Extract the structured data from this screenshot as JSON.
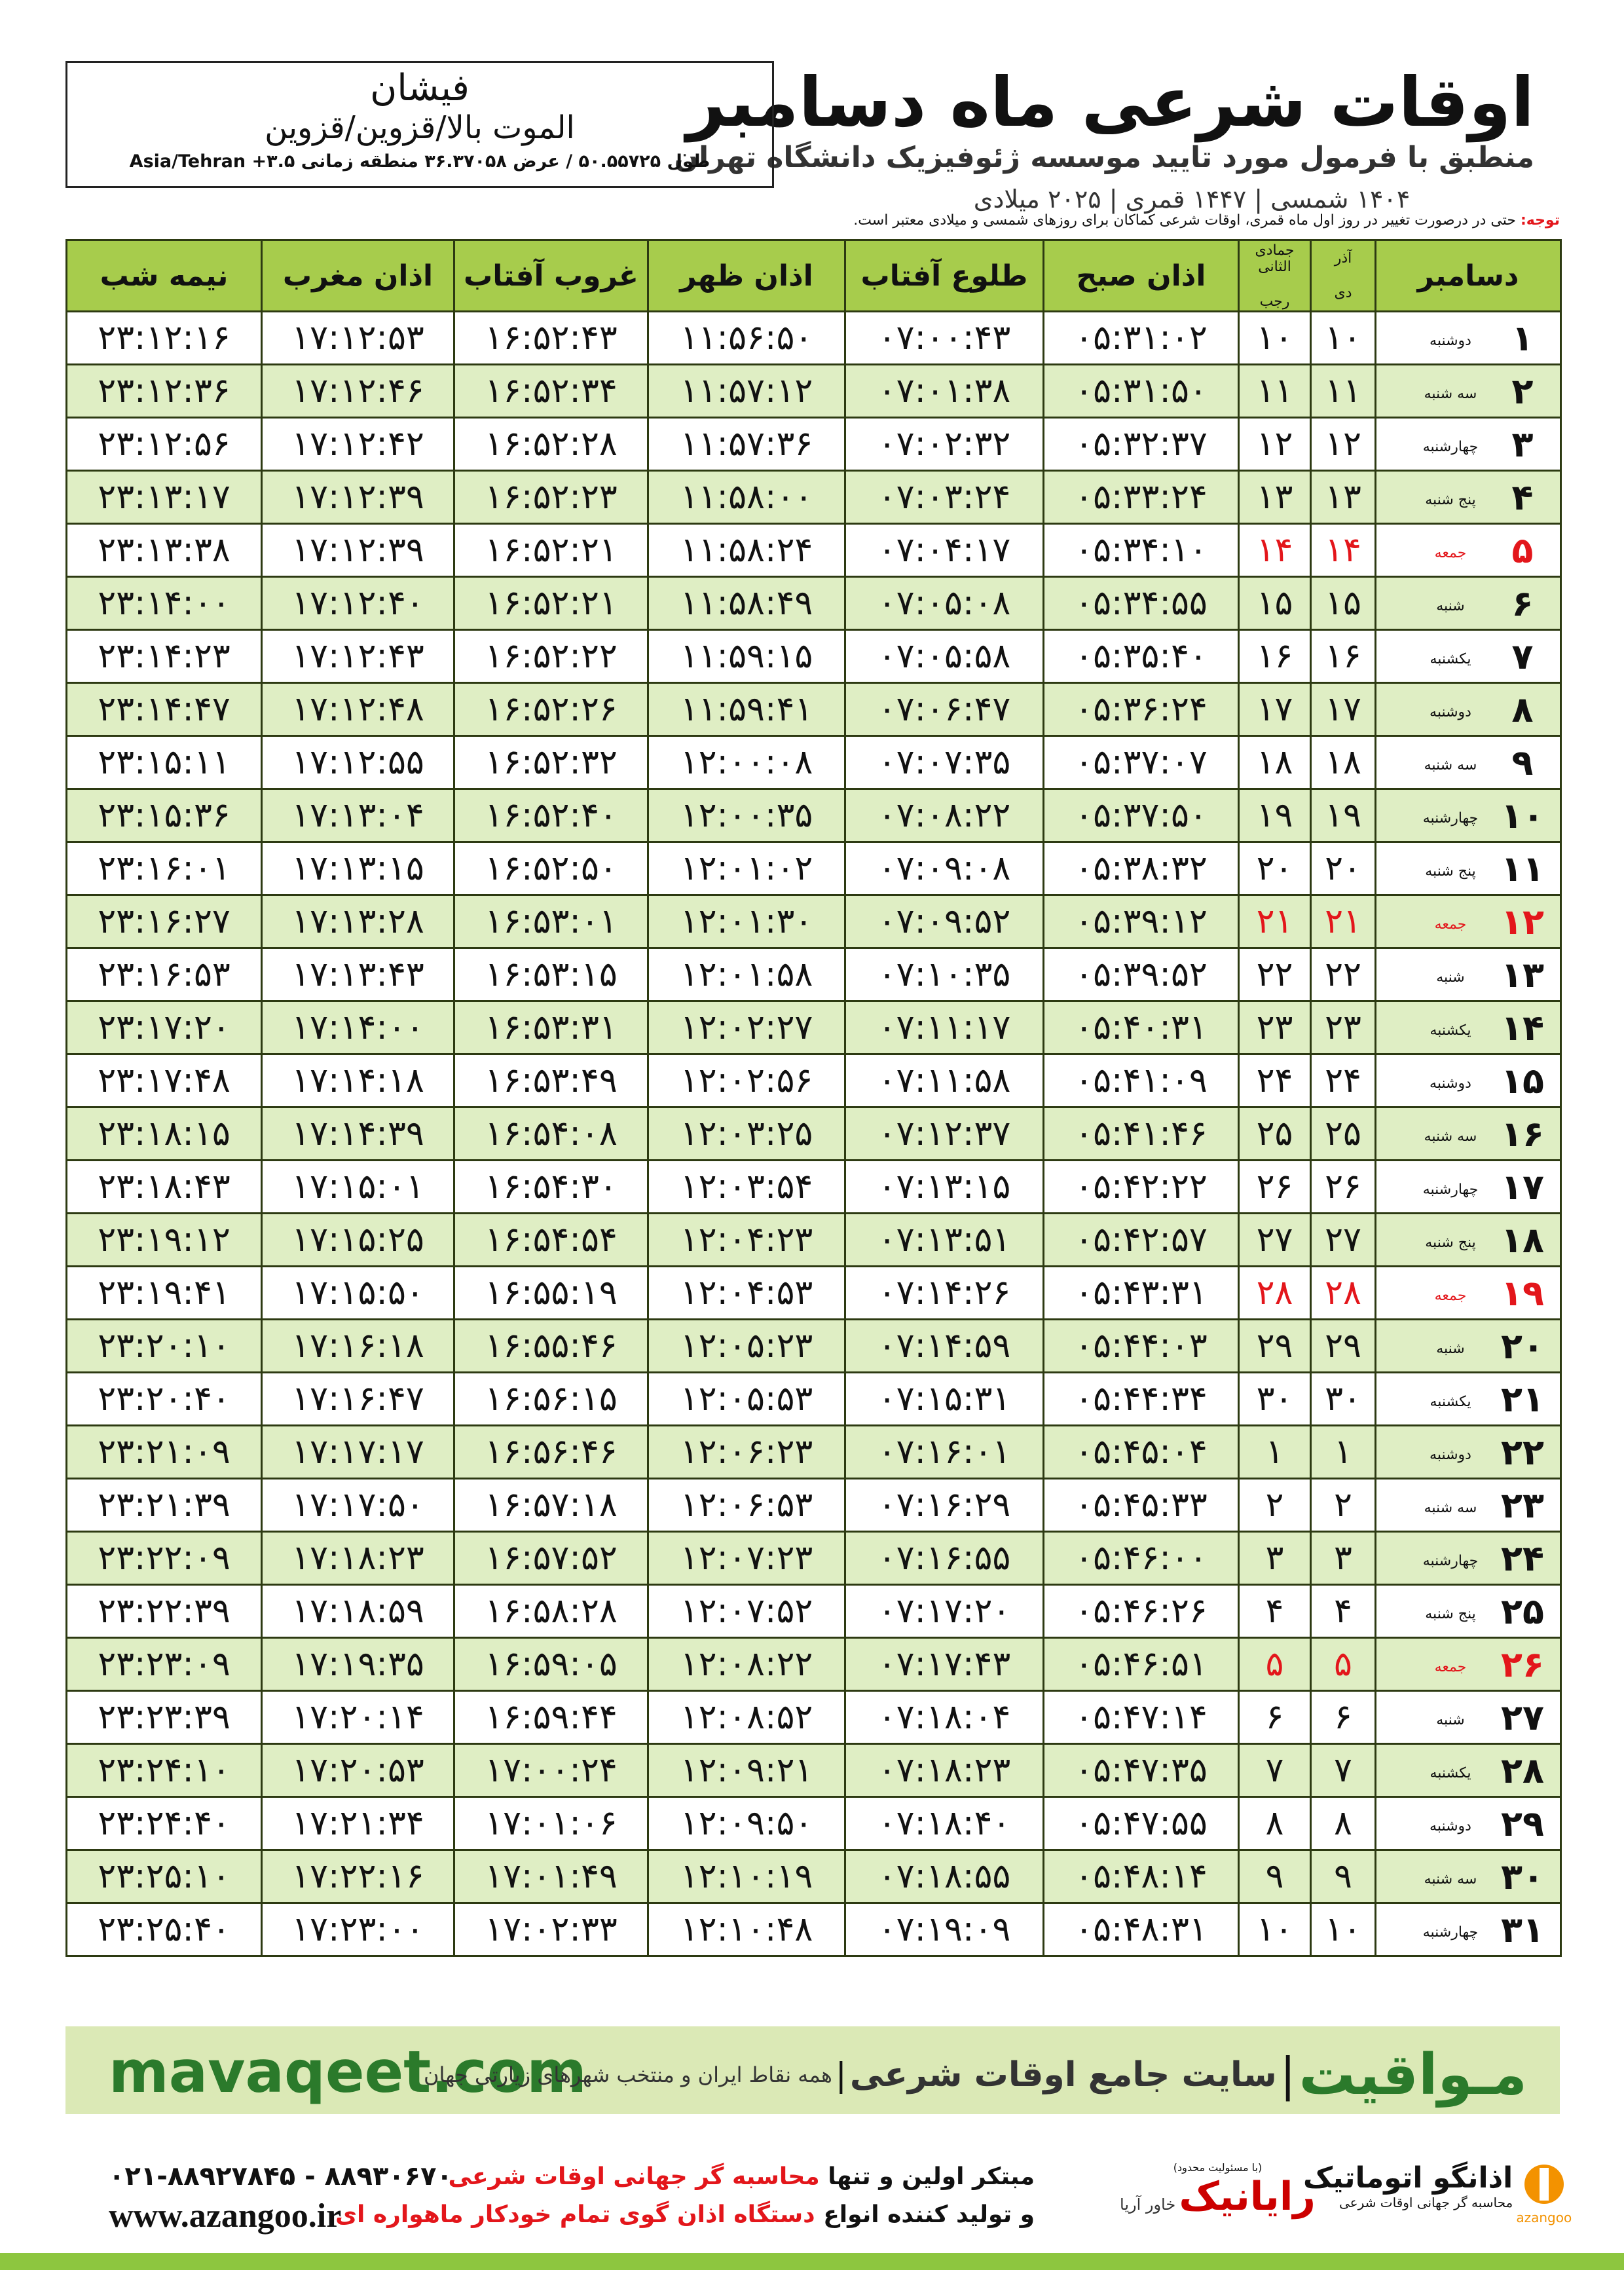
{
  "header": {
    "title": "اوقات شرعی ماه دسامبر",
    "subtitle": "منطبق با فرمول مورد تایید موسسه ژئوفیزیک دانشگاه تهران",
    "dates": "۱۴۰۴ شمسی | ۱۴۴۷ قمری | ۲۰۲۵ میلادی"
  },
  "location": {
    "city": "فیشان",
    "region": "الموت بالا/قزوین/قزوین",
    "coords": "طول ۵۰.۵۵۷۲۵ / عرض ۳۶.۳۷۰۵۸ منطقه زمانی ۳.۵+ Asia/Tehran"
  },
  "note": {
    "label": "توجه:",
    "text": "حتی در درصورت تغییر در روز اول ماه قمری، اوقات شرعی کماکان برای روزهای شمسی و میلادی معتبر است."
  },
  "table": {
    "headers": {
      "month": "دسامبر",
      "solar_top": "آذر",
      "solar_bottom": "دی",
      "lunar_top": "جمادی الثانی",
      "lunar_bottom": "رجب",
      "times": [
        "اذان صبح",
        "طلوع آفتاب",
        "اذان ظهر",
        "غروب آفتاب",
        "اذان مغرب",
        "نیمه شب"
      ]
    },
    "holiday_color": "#e3161b",
    "rows": [
      {
        "cells": [
          "۱",
          "دوشنبه",
          "۱۰",
          "۱۰",
          "۰۵:۳۱:۰۲",
          "۰۷:۰۰:۴۳",
          "۱۱:۵۶:۵۰",
          "۱۶:۵۲:۴۳",
          "۱۷:۱۲:۵۳",
          "۲۳:۱۲:۱۶"
        ]
      },
      {
        "cells": [
          "۲",
          "سه شنبه",
          "۱۱",
          "۱۱",
          "۰۵:۳۱:۵۰",
          "۰۷:۰۱:۳۸",
          "۱۱:۵۷:۱۲",
          "۱۶:۵۲:۳۴",
          "۱۷:۱۲:۴۶",
          "۲۳:۱۲:۳۶"
        ]
      },
      {
        "cells": [
          "۳",
          "چهارشنبه",
          "۱۲",
          "۱۲",
          "۰۵:۳۲:۳۷",
          "۰۷:۰۲:۳۲",
          "۱۱:۵۷:۳۶",
          "۱۶:۵۲:۲۸",
          "۱۷:۱۲:۴۲",
          "۲۳:۱۲:۵۶"
        ]
      },
      {
        "cells": [
          "۴",
          "پنج شنبه",
          "۱۳",
          "۱۳",
          "۰۵:۳۳:۲۴",
          "۰۷:۰۳:۲۴",
          "۱۱:۵۸:۰۰",
          "۱۶:۵۲:۲۳",
          "۱۷:۱۲:۳۹",
          "۲۳:۱۳:۱۷"
        ]
      },
      {
        "cells": [
          "۵",
          "جمعه",
          "۱۴",
          "۱۴",
          "۰۵:۳۴:۱۰",
          "۰۷:۰۴:۱۷",
          "۱۱:۵۸:۲۴",
          "۱۶:۵۲:۲۱",
          "۱۷:۱۲:۳۹",
          "۲۳:۱۳:۳۸"
        ],
        "holiday": true
      },
      {
        "cells": [
          "۶",
          "شنبه",
          "۱۵",
          "۱۵",
          "۰۵:۳۴:۵۵",
          "۰۷:۰۵:۰۸",
          "۱۱:۵۸:۴۹",
          "۱۶:۵۲:۲۱",
          "۱۷:۱۲:۴۰",
          "۲۳:۱۴:۰۰"
        ]
      },
      {
        "cells": [
          "۷",
          "یکشنبه",
          "۱۶",
          "۱۶",
          "۰۵:۳۵:۴۰",
          "۰۷:۰۵:۵۸",
          "۱۱:۵۹:۱۵",
          "۱۶:۵۲:۲۲",
          "۱۷:۱۲:۴۳",
          "۲۳:۱۴:۲۳"
        ]
      },
      {
        "cells": [
          "۸",
          "دوشنبه",
          "۱۷",
          "۱۷",
          "۰۵:۳۶:۲۴",
          "۰۷:۰۶:۴۷",
          "۱۱:۵۹:۴۱",
          "۱۶:۵۲:۲۶",
          "۱۷:۱۲:۴۸",
          "۲۳:۱۴:۴۷"
        ]
      },
      {
        "cells": [
          "۹",
          "سه شنبه",
          "۱۸",
          "۱۸",
          "۰۵:۳۷:۰۷",
          "۰۷:۰۷:۳۵",
          "۱۲:۰۰:۰۸",
          "۱۶:۵۲:۳۲",
          "۱۷:۱۲:۵۵",
          "۲۳:۱۵:۱۱"
        ]
      },
      {
        "cells": [
          "۱۰",
          "چهارشنبه",
          "۱۹",
          "۱۹",
          "۰۵:۳۷:۵۰",
          "۰۷:۰۸:۲۲",
          "۱۲:۰۰:۳۵",
          "۱۶:۵۲:۴۰",
          "۱۷:۱۳:۰۴",
          "۲۳:۱۵:۳۶"
        ]
      },
      {
        "cells": [
          "۱۱",
          "پنج شنبه",
          "۲۰",
          "۲۰",
          "۰۵:۳۸:۳۲",
          "۰۷:۰۹:۰۸",
          "۱۲:۰۱:۰۲",
          "۱۶:۵۲:۵۰",
          "۱۷:۱۳:۱۵",
          "۲۳:۱۶:۰۱"
        ]
      },
      {
        "cells": [
          "۱۲",
          "جمعه",
          "۲۱",
          "۲۱",
          "۰۵:۳۹:۱۲",
          "۰۷:۰۹:۵۲",
          "۱۲:۰۱:۳۰",
          "۱۶:۵۳:۰۱",
          "۱۷:۱۳:۲۸",
          "۲۳:۱۶:۲۷"
        ],
        "holiday": true
      },
      {
        "cells": [
          "۱۳",
          "شنبه",
          "۲۲",
          "۲۲",
          "۰۵:۳۹:۵۲",
          "۰۷:۱۰:۳۵",
          "۱۲:۰۱:۵۸",
          "۱۶:۵۳:۱۵",
          "۱۷:۱۳:۴۳",
          "۲۳:۱۶:۵۳"
        ]
      },
      {
        "cells": [
          "۱۴",
          "یکشنبه",
          "۲۳",
          "۲۳",
          "۰۵:۴۰:۳۱",
          "۰۷:۱۱:۱۷",
          "۱۲:۰۲:۲۷",
          "۱۶:۵۳:۳۱",
          "۱۷:۱۴:۰۰",
          "۲۳:۱۷:۲۰"
        ]
      },
      {
        "cells": [
          "۱۵",
          "دوشنبه",
          "۲۴",
          "۲۴",
          "۰۵:۴۱:۰۹",
          "۰۷:۱۱:۵۸",
          "۱۲:۰۲:۵۶",
          "۱۶:۵۳:۴۹",
          "۱۷:۱۴:۱۸",
          "۲۳:۱۷:۴۸"
        ]
      },
      {
        "cells": [
          "۱۶",
          "سه شنبه",
          "۲۵",
          "۲۵",
          "۰۵:۴۱:۴۶",
          "۰۷:۱۲:۳۷",
          "۱۲:۰۳:۲۵",
          "۱۶:۵۴:۰۸",
          "۱۷:۱۴:۳۹",
          "۲۳:۱۸:۱۵"
        ]
      },
      {
        "cells": [
          "۱۷",
          "چهارشنبه",
          "۲۶",
          "۲۶",
          "۰۵:۴۲:۲۲",
          "۰۷:۱۳:۱۵",
          "۱۲:۰۳:۵۴",
          "۱۶:۵۴:۳۰",
          "۱۷:۱۵:۰۱",
          "۲۳:۱۸:۴۳"
        ]
      },
      {
        "cells": [
          "۱۸",
          "پنج شنبه",
          "۲۷",
          "۲۷",
          "۰۵:۴۲:۵۷",
          "۰۷:۱۳:۵۱",
          "۱۲:۰۴:۲۳",
          "۱۶:۵۴:۵۴",
          "۱۷:۱۵:۲۵",
          "۲۳:۱۹:۱۲"
        ]
      },
      {
        "cells": [
          "۱۹",
          "جمعه",
          "۲۸",
          "۲۸",
          "۰۵:۴۳:۳۱",
          "۰۷:۱۴:۲۶",
          "۱۲:۰۴:۵۳",
          "۱۶:۵۵:۱۹",
          "۱۷:۱۵:۵۰",
          "۲۳:۱۹:۴۱"
        ],
        "holiday": true
      },
      {
        "cells": [
          "۲۰",
          "شنبه",
          "۲۹",
          "۲۹",
          "۰۵:۴۴:۰۳",
          "۰۷:۱۴:۵۹",
          "۱۲:۰۵:۲۳",
          "۱۶:۵۵:۴۶",
          "۱۷:۱۶:۱۸",
          "۲۳:۲۰:۱۰"
        ]
      },
      {
        "cells": [
          "۲۱",
          "یکشنبه",
          "۳۰",
          "۳۰",
          "۰۵:۴۴:۳۴",
          "۰۷:۱۵:۳۱",
          "۱۲:۰۵:۵۳",
          "۱۶:۵۶:۱۵",
          "۱۷:۱۶:۴۷",
          "۲۳:۲۰:۴۰"
        ]
      },
      {
        "cells": [
          "۲۲",
          "دوشنبه",
          "۱",
          "۱",
          "۰۵:۴۵:۰۴",
          "۰۷:۱۶:۰۱",
          "۱۲:۰۶:۲۳",
          "۱۶:۵۶:۴۶",
          "۱۷:۱۷:۱۷",
          "۲۳:۲۱:۰۹"
        ]
      },
      {
        "cells": [
          "۲۳",
          "سه شنبه",
          "۲",
          "۲",
          "۰۵:۴۵:۳۳",
          "۰۷:۱۶:۲۹",
          "۱۲:۰۶:۵۳",
          "۱۶:۵۷:۱۸",
          "۱۷:۱۷:۵۰",
          "۲۳:۲۱:۳۹"
        ]
      },
      {
        "cells": [
          "۲۴",
          "چهارشنبه",
          "۳",
          "۳",
          "۰۵:۴۶:۰۰",
          "۰۷:۱۶:۵۵",
          "۱۲:۰۷:۲۳",
          "۱۶:۵۷:۵۲",
          "۱۷:۱۸:۲۳",
          "۲۳:۲۲:۰۹"
        ]
      },
      {
        "cells": [
          "۲۵",
          "پنج شنبه",
          "۴",
          "۴",
          "۰۵:۴۶:۲۶",
          "۰۷:۱۷:۲۰",
          "۱۲:۰۷:۵۲",
          "۱۶:۵۸:۲۸",
          "۱۷:۱۸:۵۹",
          "۲۳:۲۲:۳۹"
        ]
      },
      {
        "cells": [
          "۲۶",
          "جمعه",
          "۵",
          "۵",
          "۰۵:۴۶:۵۱",
          "۰۷:۱۷:۴۳",
          "۱۲:۰۸:۲۲",
          "۱۶:۵۹:۰۵",
          "۱۷:۱۹:۳۵",
          "۲۳:۲۳:۰۹"
        ],
        "holiday": true
      },
      {
        "cells": [
          "۲۷",
          "شنبه",
          "۶",
          "۶",
          "۰۵:۴۷:۱۴",
          "۰۷:۱۸:۰۴",
          "۱۲:۰۸:۵۲",
          "۱۶:۵۹:۴۴",
          "۱۷:۲۰:۱۴",
          "۲۳:۲۳:۳۹"
        ]
      },
      {
        "cells": [
          "۲۸",
          "یکشنبه",
          "۷",
          "۷",
          "۰۵:۴۷:۳۵",
          "۰۷:۱۸:۲۳",
          "۱۲:۰۹:۲۱",
          "۱۷:۰۰:۲۴",
          "۱۷:۲۰:۵۳",
          "۲۳:۲۴:۱۰"
        ]
      },
      {
        "cells": [
          "۲۹",
          "دوشنبه",
          "۸",
          "۸",
          "۰۵:۴۷:۵۵",
          "۰۷:۱۸:۴۰",
          "۱۲:۰۹:۵۰",
          "۱۷:۰۱:۰۶",
          "۱۷:۲۱:۳۴",
          "۲۳:۲۴:۴۰"
        ]
      },
      {
        "cells": [
          "۳۰",
          "سه شنبه",
          "۹",
          "۹",
          "۰۵:۴۸:۱۴",
          "۰۷:۱۸:۵۵",
          "۱۲:۱۰:۱۹",
          "۱۷:۰۱:۴۹",
          "۱۷:۲۲:۱۶",
          "۲۳:۲۵:۱۰"
        ]
      },
      {
        "cells": [
          "۳۱",
          "چهارشنبه",
          "۱۰",
          "۱۰",
          "۰۵:۴۸:۳۱",
          "۰۷:۱۹:۰۹",
          "۱۲:۱۰:۴۸",
          "۱۷:۰۲:۳۳",
          "۱۷:۲۳:۰۰",
          "۲۳:۲۵:۴۰"
        ]
      }
    ]
  },
  "banner": {
    "brand": "مـواقیت",
    "slogan": "سایت جامع اوقات شرعی",
    "coverage": "همه نقاط ایران و منتخب شهرهای زیارتی جهان",
    "url": "mavaqeet.com"
  },
  "footer": {
    "phones": "۰۲۱-۸۸۹۲۷۸۴۵ - ۸۸۹۳۰۶۷۰",
    "website": "www.azangoo.ir",
    "line1_a": "مبتکر اولین و تنها",
    "line1_b": "محاسبه گر جهانی اوقات شرعی",
    "line2_a": "و تولید کننده انواع",
    "line2_b": "دستگاه اذان گوی تمام خودکار ماهواره ای",
    "partner_note": "(با مسئولیت محدود)",
    "partner_name": "رایانیک",
    "partner_sub": "خاور آریا",
    "logo_name": "اذانگو اتوماتیک",
    "logo_sub": "محاسبه گر جهانی اوقات شرعی",
    "logo_latin": "azangoo"
  }
}
